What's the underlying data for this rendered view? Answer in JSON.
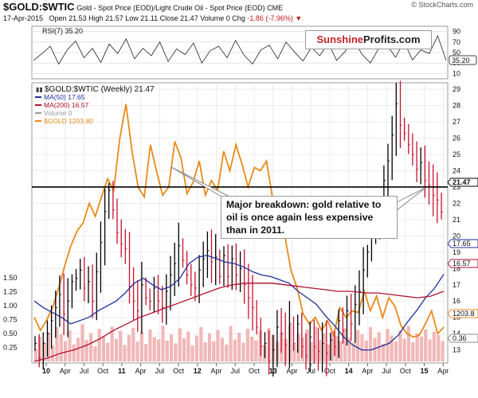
{
  "header": {
    "symbol": "$GOLD:$WTIC",
    "description": "Gold - Spot Price (EOD)/Light Crude Oil - Spot Price (EOD) CME",
    "date": "17-Apr-2015",
    "open_label": "Open",
    "open": "21.53",
    "high_label": "High",
    "high": "21.57",
    "low_label": "Low",
    "low": "21.11",
    "close_label": "Close",
    "close": "21.47",
    "volume_label": "Volume",
    "volume": "0",
    "chg_label": "Chg",
    "chg": "-1.86 (-7.96%)",
    "source": "© StockCharts.com"
  },
  "brand": {
    "part1": "Sunshine",
    "part2": "Profits.com"
  },
  "annotation": {
    "text": "Major breakdown: gold relative to oil is once again less expensive than in 2011."
  },
  "chart_data": [
    {
      "type": "line",
      "panel": "rsi",
      "title": "RSI(7) 35.20",
      "y_ticks": [
        90,
        70,
        50,
        30,
        10
      ],
      "ylim": [
        0,
        100
      ],
      "current_value": "35.20",
      "series": [
        {
          "name": "RSI(7)",
          "color": "#222222",
          "values": [
            35,
            48,
            62,
            28,
            55,
            72,
            40,
            58,
            31,
            66,
            48,
            76,
            38,
            58,
            44,
            70,
            33,
            57,
            46,
            68,
            30,
            54,
            62,
            40,
            73,
            45,
            28,
            55,
            64,
            38,
            70,
            51,
            34,
            60,
            44,
            68,
            35,
            52,
            74,
            47,
            30,
            58,
            63,
            41,
            71,
            36,
            55,
            48,
            82,
            35
          ]
        }
      ]
    },
    {
      "type": "line",
      "panel": "price",
      "title": "$GOLD:$WTIC (Weekly) 21.47",
      "x_labels": [
        "10",
        "Apr",
        "Jul",
        "Oct",
        "11",
        "Apr",
        "Jul",
        "Oct",
        "12",
        "Apr",
        "Jul",
        "Oct",
        "13",
        "Apr",
        "Jul",
        "Oct",
        "14",
        "Apr",
        "Jul",
        "Oct",
        "15",
        "Apr"
      ],
      "y_ticks_right": [
        29,
        28,
        27,
        26,
        25,
        24,
        23,
        22,
        21,
        20,
        19,
        18,
        17,
        16,
        15,
        14,
        13
      ],
      "ylim": [
        12.2,
        29.4
      ],
      "y_ticks_left": [
        "1.50",
        "1.25",
        "1.00",
        "0.75",
        "0.50",
        "0.25"
      ],
      "volume_ylim": [
        0,
        1.8
      ],
      "horizontal_line": 23,
      "value_labels": [
        {
          "text": "21.47",
          "color": "#000000"
        },
        {
          "text": "17.65",
          "color": "#1f2f9c"
        },
        {
          "text": "16.57",
          "color": "#b01030"
        },
        {
          "text": "1203.8",
          "color": "#e88a1a"
        },
        {
          "text": "0.36",
          "color": "#888888"
        }
      ],
      "legend": [
        {
          "name": "$GOLD:$WTIC (Weekly) 21.47",
          "color": "#000000"
        },
        {
          "name": "MA(50) 17.65",
          "color": "#1f2f9c"
        },
        {
          "name": "MA(200) 16.57",
          "color": "#b01030"
        },
        {
          "name": "Volume 0",
          "color": "#999999"
        },
        {
          "name": "$GOLD 1203.80",
          "color": "#e88a1a"
        }
      ],
      "ratio_close": [
        13.4,
        12.5,
        13.4,
        14.0,
        14.8,
        15.6,
        16.4,
        15.2,
        16.0,
        17.2,
        17.4,
        17.9,
        16.8,
        17.2,
        16.0,
        17.8,
        19.6,
        21.5,
        22.8,
        21.6,
        20.2,
        19.5,
        19.2,
        16.9,
        16.0,
        15.4,
        17.0,
        16.2,
        16.0,
        16.8,
        16.0,
        15.6,
        16.6,
        17.6,
        18.3,
        19.4,
        18.5,
        17.6,
        17.0,
        16.8,
        17.9,
        18.6,
        19.1,
        18.4,
        18.7,
        17.5,
        18.8,
        17.5,
        18.6,
        17.6,
        18.0,
        17.0,
        16.2,
        15.6,
        14.4,
        13.2,
        13.4,
        12.3,
        13.0,
        14.4,
        14.0,
        13.3,
        14.6,
        13.4,
        14.6,
        13.2,
        12.6,
        13.8,
        13.2,
        12.9,
        13.4,
        12.8,
        13.6,
        13.2,
        14.8,
        14.2,
        15.4,
        14.6,
        15.8,
        16.6,
        17.9,
        19.0,
        20.2,
        20.6,
        21.2,
        23.4,
        24.6,
        26.2,
        28.1,
        26.8,
        26.3,
        25.6,
        25.0,
        24.1,
        24.5,
        23.4,
        23.1,
        22.5,
        22.2,
        21.47
      ],
      "series": [
        {
          "name": "MA(50)",
          "color": "#1f2f9c",
          "values": [
            16.0,
            15.6,
            15.3,
            15.0,
            14.6,
            14.8,
            15.0,
            15.4,
            15.7,
            16.0,
            16.5,
            17.1,
            17.4,
            17.0,
            16.7,
            16.9,
            17.4,
            18.3,
            18.7,
            18.8,
            18.6,
            18.4,
            18.3,
            18.1,
            17.8,
            17.6,
            17.5,
            17.3,
            17.1,
            16.6,
            16.2,
            15.8,
            15.1,
            14.5,
            13.8,
            13.3,
            13.0,
            13.0,
            13.2,
            13.4,
            13.9,
            14.7,
            15.4,
            16.2,
            16.8,
            17.65
          ]
        },
        {
          "name": "MA(200)",
          "color": "#b01030",
          "values": [
            12.3,
            12.5,
            12.8,
            13.0,
            13.3,
            13.7,
            14.2,
            14.6,
            15.0,
            15.3,
            15.6,
            15.9,
            16.2,
            16.5,
            16.8,
            17.0,
            17.1,
            17.1,
            17.1,
            17.0,
            16.9,
            16.8,
            16.7,
            16.6,
            16.6,
            16.5,
            16.5,
            16.4,
            16.3,
            16.2,
            16.3,
            16.6
          ]
        },
        {
          "name": "$GOLD",
          "color": "#e88a1a",
          "values": [
            15.0,
            14.2,
            14.8,
            15.6,
            16.8,
            18.2,
            19.4,
            20.3,
            20.8,
            22.0,
            21.2,
            22.4,
            23.5,
            22.8,
            26.0,
            28.1,
            25.2,
            23.0,
            22.4,
            25.6,
            24.0,
            22.5,
            23.0,
            25.8,
            24.8,
            22.6,
            23.3,
            24.6,
            22.5,
            23.4,
            22.8,
            25.2,
            24.0,
            25.6,
            24.4,
            23.0,
            24.2,
            24.0,
            24.6,
            22.3,
            21.0,
            20.0,
            17.9,
            16.8,
            15.2,
            14.6,
            15.0,
            14.2,
            14.8,
            13.9,
            15.6,
            15.0,
            15.4,
            15.3,
            16.6,
            15.4,
            16.3,
            15.0,
            16.2,
            15.7,
            14.5,
            14.0,
            13.8,
            13.9,
            14.6,
            15.4,
            14.0,
            14.4
          ]
        }
      ],
      "volume": {
        "name": "Volume",
        "values": [
          0.22,
          0.44,
          0.34,
          0.52,
          0.28,
          0.61,
          0.48,
          0.36,
          0.55,
          0.3,
          0.42,
          0.66,
          0.38,
          0.5,
          0.27,
          0.58,
          0.45,
          0.33,
          0.62,
          0.4,
          0.54,
          0.29,
          0.47,
          0.6,
          0.35,
          0.52,
          0.31,
          0.57,
          0.43,
          0.39,
          0.64,
          0.37,
          0.48,
          0.32,
          0.59,
          0.41,
          0.53,
          0.28,
          0.46,
          0.61,
          0.34,
          0.5,
          0.36,
          0.56,
          0.42,
          0.3,
          0.63,
          0.39,
          0.51,
          0.33,
          0.58,
          0.44,
          0.37,
          0.55,
          0.29,
          0.6,
          0.47,
          0.35,
          0.52,
          0.4,
          0.65,
          0.31,
          0.49,
          0.43,
          0.57,
          0.34,
          0.62,
          0.38,
          0.5,
          0.3,
          0.54,
          0.45,
          0.36,
          0.59,
          0.41,
          0.33,
          0.56,
          0.48,
          0.37,
          0.61,
          0.42,
          0.52,
          0.31,
          0.58,
          0.46,
          0.36,
          0.55,
          0.4,
          0.63,
          0.34,
          0.5,
          0.44,
          0.57,
          0.39,
          0.53,
          0.47,
          0.36
        ]
      }
    }
  ]
}
